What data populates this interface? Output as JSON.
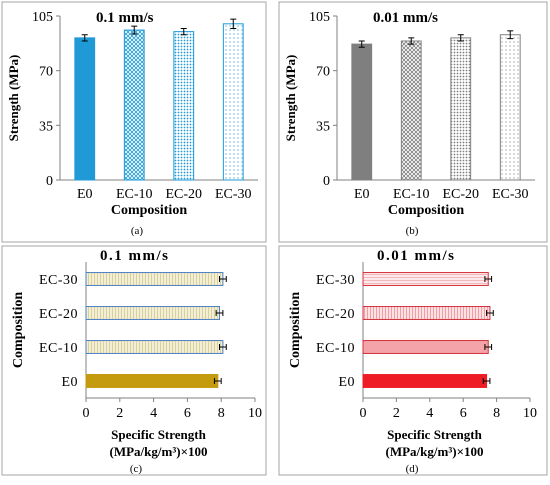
{
  "chart_data": [
    {
      "panel": "(a)",
      "type": "bar",
      "orientation": "vertical",
      "title": "0.1 mm/s",
      "xlabel": "Composition",
      "ylabel": "Strength (MPa)",
      "categories": [
        "E0",
        "EC-10",
        "EC-20",
        "EC-30"
      ],
      "values": [
        91,
        96,
        95,
        100
      ],
      "errors": [
        2,
        2.5,
        2,
        3
      ],
      "ylim": [
        0,
        105
      ],
      "ticks": [
        0,
        35,
        70,
        105
      ],
      "fills": [
        "solid",
        "crosshatch",
        "dots",
        "sparse-dots"
      ],
      "colors": [
        "#1f9ad6",
        "#1f9ad6",
        "#1f9ad6",
        "#1f9ad6"
      ]
    },
    {
      "panel": "(b)",
      "type": "bar",
      "orientation": "vertical",
      "title": "0.01 mm/s",
      "xlabel": "Composition",
      "ylabel": "Strength (MPa)",
      "categories": [
        "E0",
        "EC-10",
        "EC-20",
        "EC-30"
      ],
      "values": [
        87,
        89,
        91,
        93
      ],
      "errors": [
        2,
        2,
        2,
        2.5
      ],
      "ylim": [
        0,
        105
      ],
      "ticks": [
        0,
        35,
        70,
        105
      ],
      "fills": [
        "solid",
        "crosshatch",
        "dots",
        "sparse-dots"
      ],
      "colors": [
        "#7f7f7f",
        "#7f7f7f",
        "#7f7f7f",
        "#7f7f7f"
      ]
    },
    {
      "panel": "(c)",
      "type": "bar",
      "orientation": "horizontal",
      "title": "0.1  mm/s",
      "xlabel": "Specific Strength",
      "xlabel2": "(MPa/kg/m³)×100",
      "ylabel": "Composition",
      "categories": [
        "E0",
        "EC-10",
        "EC-20",
        "EC-30"
      ],
      "values": [
        7.8,
        8.1,
        7.9,
        8.1
      ],
      "errors": [
        0.2,
        0.2,
        0.2,
        0.2
      ],
      "xlim": [
        0,
        10
      ],
      "ticks": [
        0,
        2,
        4,
        6,
        8,
        10
      ],
      "fills": [
        "solid",
        "vlines",
        "vlines",
        "vlines"
      ],
      "colors": [
        "#c49a0e",
        "#e9e4c8",
        "#e9e4c8",
        "#e9e4c8"
      ],
      "edge": "#4a7fc0"
    },
    {
      "panel": "(d)",
      "type": "bar",
      "orientation": "horizontal",
      "title": "0.01  mm/s",
      "xlabel": "Specific Strength",
      "xlabel2": "(MPa/kg/m³)×100",
      "ylabel": "Composition",
      "categories": [
        "E0",
        "EC-10",
        "EC-20",
        "EC-30"
      ],
      "values": [
        7.4,
        7.5,
        7.6,
        7.5
      ],
      "errors": [
        0.2,
        0.2,
        0.2,
        0.2
      ],
      "xlim": [
        0,
        10
      ],
      "ticks": [
        0,
        2,
        4,
        6,
        8,
        10
      ],
      "fills": [
        "solid",
        "light",
        "vlines",
        "hlines"
      ],
      "colors": [
        "#ee1c25",
        "#f4a3a8",
        "#f7c4c8",
        "#f8d0d4"
      ],
      "edge": "#d0303a"
    }
  ]
}
